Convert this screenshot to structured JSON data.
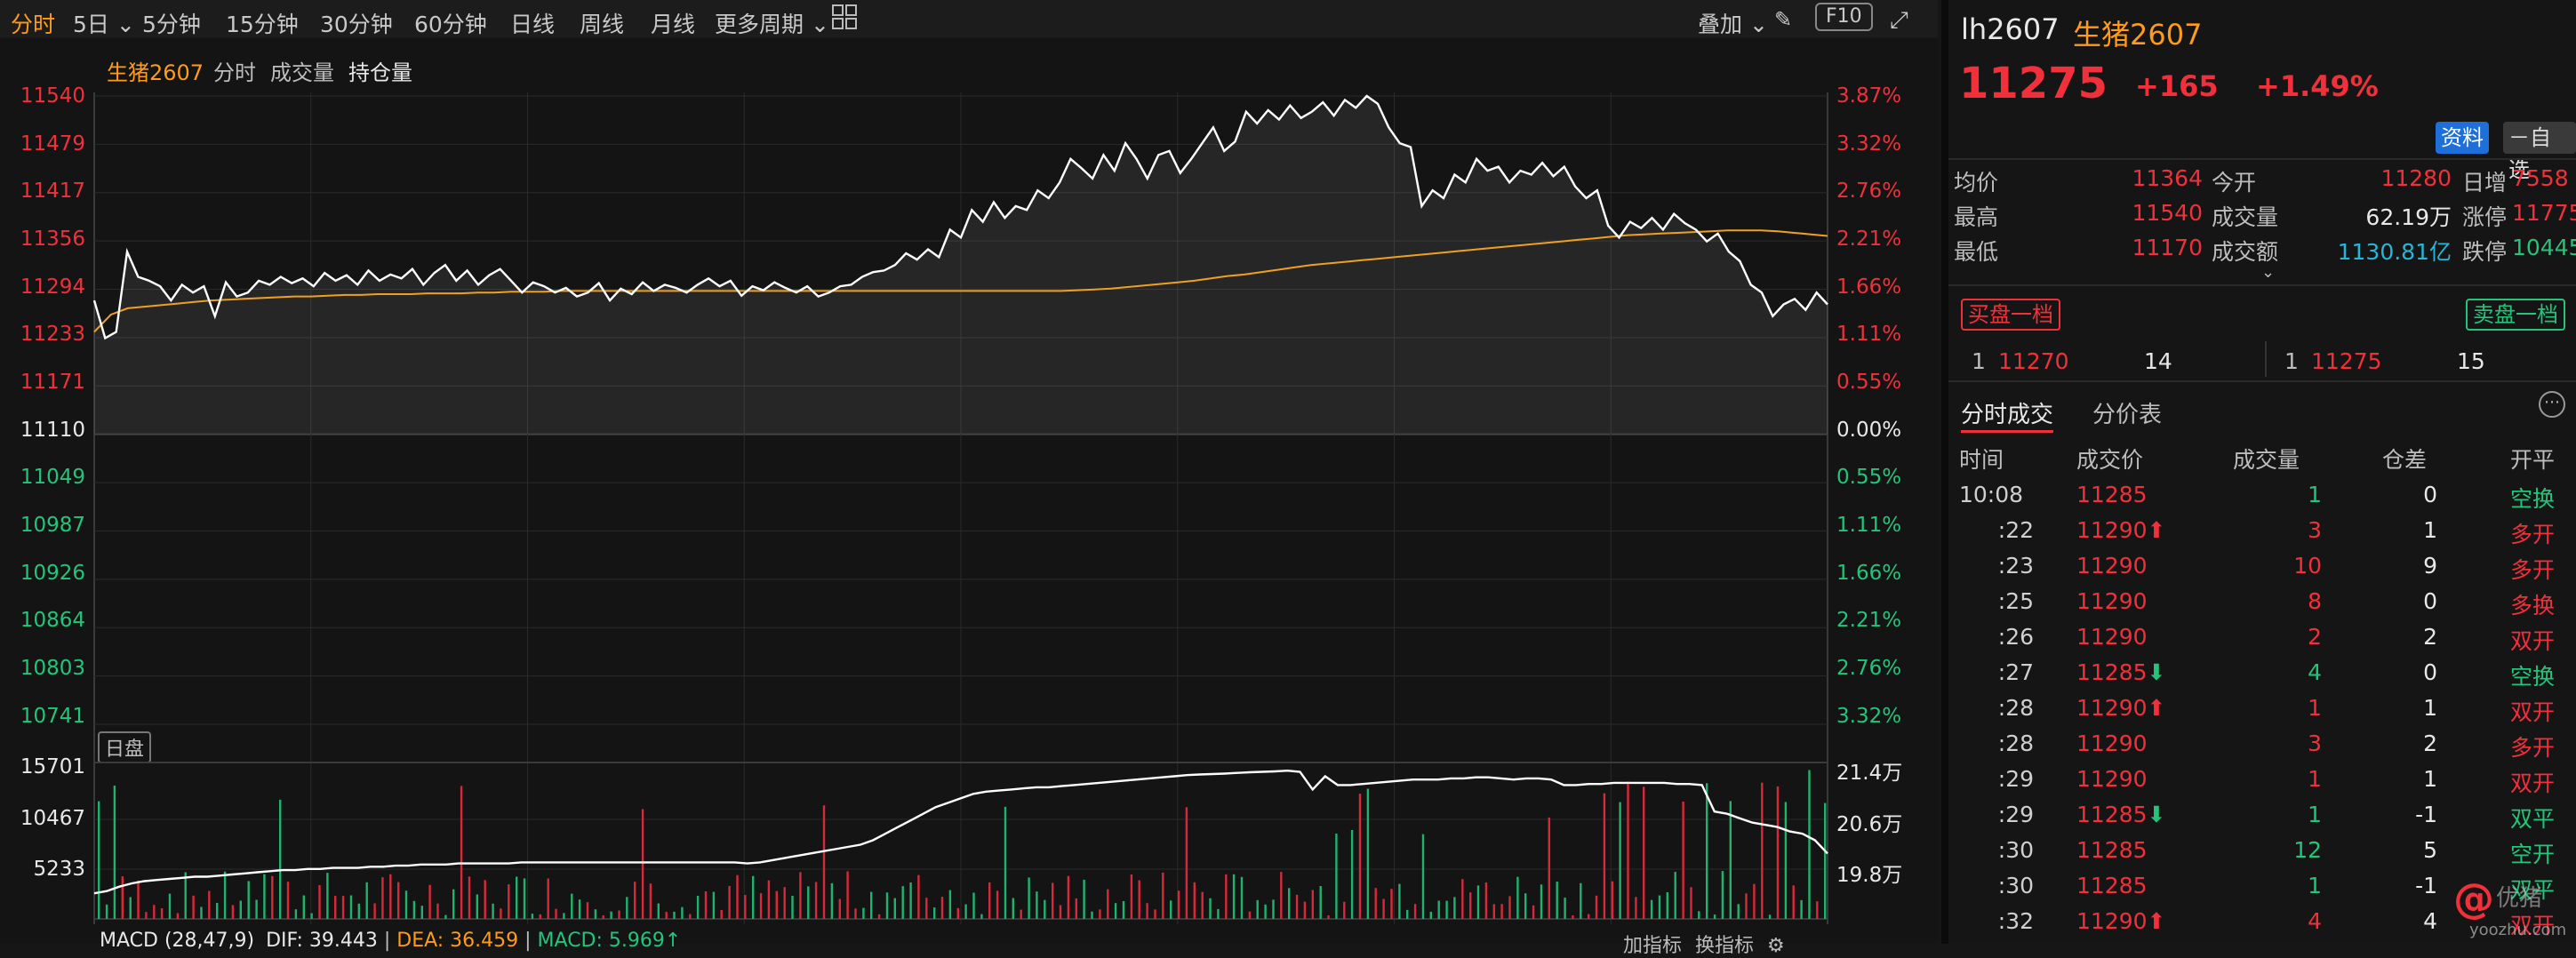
{
  "toolbar": {
    "periods": [
      "分时",
      "5日",
      "5分钟",
      "15分钟",
      "30分钟",
      "60分钟",
      "日线",
      "周线",
      "月线",
      "更多周期"
    ],
    "overlay": "叠加",
    "f10": "F10"
  },
  "chart_header": {
    "symbol": "生猪2607",
    "tabs": [
      "分时",
      "成交量",
      "持仓量"
    ]
  },
  "price_axis": {
    "left": [
      "11540",
      "11479",
      "11417",
      "11356",
      "11294",
      "11233",
      "11171",
      "11110",
      "11049",
      "10987",
      "10926",
      "10864",
      "10803",
      "10741"
    ],
    "right": [
      "3.87%",
      "3.32%",
      "2.76%",
      "2.21%",
      "1.66%",
      "1.11%",
      "0.55%",
      "0.00%",
      "0.55%",
      "1.11%",
      "1.66%",
      "2.21%",
      "2.76%",
      "3.32%"
    ]
  },
  "session_label": "日盘",
  "volume_axis": {
    "left": [
      "15701",
      "10467",
      "5233"
    ],
    "right": [
      "21.4万",
      "20.6万",
      "19.8万"
    ]
  },
  "macd_label": {
    "name": "MACD (28,47,9)",
    "dif": "DIF: 39.443",
    "dea": "DEA: 36.459",
    "macd": "MACD: 5.969↑"
  },
  "bottom_right": {
    "add": "加指标",
    "swap": "换指标"
  },
  "chart_data": {
    "type": "line",
    "price_range": [
      10741,
      11540
    ],
    "prev_close": 11110,
    "price": [
      11280,
      11232,
      11240,
      11342,
      11310,
      11305,
      11298,
      11280,
      11300,
      11290,
      11298,
      11260,
      11303,
      11285,
      11290,
      11305,
      11300,
      11310,
      11302,
      11308,
      11298,
      11315,
      11305,
      11312,
      11300,
      11318,
      11305,
      11313,
      11308,
      11320,
      11300,
      11315,
      11325,
      11305,
      11318,
      11300,
      11312,
      11320,
      11305,
      11290,
      11303,
      11298,
      11290,
      11296,
      11285,
      11290,
      11302,
      11280,
      11295,
      11288,
      11303,
      11292,
      11300,
      11296,
      11290,
      11300,
      11308,
      11298,
      11305,
      11286,
      11298,
      11293,
      11303,
      11296,
      11290,
      11298,
      11285,
      11290,
      11298,
      11300,
      11310,
      11316,
      11318,
      11325,
      11340,
      11332,
      11345,
      11335,
      11370,
      11360,
      11395,
      11380,
      11405,
      11385,
      11400,
      11395,
      11420,
      11410,
      11430,
      11460,
      11448,
      11435,
      11465,
      11445,
      11480,
      11460,
      11435,
      11465,
      11470,
      11442,
      11460,
      11480,
      11500,
      11470,
      11482,
      11520,
      11505,
      11522,
      11510,
      11528,
      11512,
      11520,
      11532,
      11515,
      11535,
      11525,
      11540,
      11530,
      11500,
      11480,
      11475,
      11400,
      11420,
      11410,
      11440,
      11430,
      11460,
      11445,
      11450,
      11430,
      11445,
      11440,
      11455,
      11438,
      11450,
      11425,
      11410,
      11420,
      11375,
      11360,
      11380,
      11372,
      11385,
      11370,
      11390,
      11378,
      11370,
      11355,
      11365,
      11342,
      11330,
      11300,
      11290,
      11260,
      11275,
      11282,
      11268,
      11290,
      11275
    ],
    "avg": [
      11240,
      11262,
      11270,
      11272,
      11274,
      11276,
      11278,
      11280,
      11281,
      11282,
      11283,
      11284,
      11285,
      11285,
      11286,
      11287,
      11287,
      11288,
      11288,
      11288,
      11289,
      11289,
      11289,
      11290,
      11290,
      11291,
      11291,
      11291,
      11292,
      11292,
      11292,
      11292,
      11292,
      11292,
      11292,
      11292,
      11292,
      11292,
      11292,
      11292,
      11292,
      11292,
      11292,
      11292,
      11292,
      11292,
      11292,
      11292,
      11292,
      11292,
      11292,
      11292,
      11292,
      11292,
      11292,
      11292,
      11292,
      11292,
      11292,
      11293,
      11294,
      11295,
      11297,
      11299,
      11301,
      11303,
      11305,
      11308,
      11311,
      11313,
      11316,
      11319,
      11322,
      11325,
      11327,
      11329,
      11331,
      11333,
      11335,
      11337,
      11339,
      11341,
      11343,
      11345,
      11347,
      11349,
      11351,
      11353,
      11355,
      11357,
      11359,
      11361,
      11363,
      11364,
      11365,
      11366,
      11367,
      11368,
      11369,
      11369,
      11369,
      11368,
      11366,
      11364,
      11362
    ],
    "oi": [
      1.0,
      1.1,
      1.3,
      1.45,
      1.55,
      1.6,
      1.65,
      1.7,
      1.75,
      1.75,
      1.8,
      1.85,
      1.9,
      1.95,
      2.0,
      2.05,
      2.05,
      2.1,
      2.1,
      2.15,
      2.15,
      2.15,
      2.2,
      2.2,
      2.25,
      2.25,
      2.3,
      2.3,
      2.3,
      2.35,
      2.35,
      2.35,
      2.35,
      2.35,
      2.4,
      2.4,
      2.4,
      2.4,
      2.4,
      2.4,
      2.4,
      2.4,
      2.4,
      2.4,
      2.4,
      2.4,
      2.4,
      2.4,
      2.4,
      2.4,
      2.4,
      2.4,
      2.35,
      2.4,
      2.5,
      2.6,
      2.7,
      2.8,
      2.9,
      3.0,
      3.1,
      3.2,
      3.4,
      3.7,
      4.0,
      4.3,
      4.6,
      4.9,
      5.1,
      5.3,
      5.5,
      5.6,
      5.65,
      5.7,
      5.75,
      5.8,
      5.8,
      5.85,
      5.9,
      5.95,
      6.0,
      6.05,
      6.1,
      6.15,
      6.2,
      6.25,
      6.3,
      6.35,
      6.38,
      6.4,
      6.42,
      6.45,
      6.48,
      6.5,
      6.52,
      6.55,
      6.5,
      5.7,
      6.3,
      5.9,
      5.9,
      5.95,
      6.0,
      6.05,
      6.1,
      6.15,
      6.15,
      6.15,
      6.2,
      6.2,
      6.25,
      6.25,
      6.2,
      6.15,
      6.2,
      6.2,
      6.15,
      5.9,
      5.9,
      5.95,
      5.95,
      6.0,
      6.0,
      6.0,
      6.0,
      6.0,
      5.95,
      5.95,
      5.9,
      4.7,
      4.6,
      4.4,
      4.2,
      4.1,
      4.0,
      3.8,
      3.7,
      3.4,
      2.8
    ]
  },
  "quote": {
    "code": "lh2607",
    "name": "生猪2607",
    "last": "11275",
    "change": "+165",
    "pct": "+1.49%",
    "btn_info": "资料",
    "btn_watch": "－自选",
    "stats": [
      [
        "均价",
        "11364",
        "今开",
        "11280",
        "日增",
        "7558"
      ],
      [
        "最高",
        "11540",
        "成交量",
        "62.19万",
        "涨停",
        "11775"
      ],
      [
        "最低",
        "11170",
        "成交额",
        "1130.81亿",
        "跌停",
        "10445"
      ]
    ],
    "bid_btn": "买盘一档",
    "ask_btn": "卖盘一档",
    "bid": {
      "level": "1",
      "price": "11270",
      "qty": "14"
    },
    "ask": {
      "level": "1",
      "price": "11275",
      "qty": "15"
    }
  },
  "trades": {
    "tabs": [
      "分时成交",
      "分价表"
    ],
    "headers": [
      "时间",
      "成交价",
      "成交量",
      "仓差",
      "开平"
    ],
    "rows": [
      [
        "10:08",
        "11285",
        "1",
        "0",
        "空换",
        "",
        ""
      ],
      [
        ":22",
        "11290",
        "3",
        "1",
        "多开",
        "up",
        ""
      ],
      [
        ":23",
        "11290",
        "10",
        "9",
        "多开",
        "",
        ""
      ],
      [
        ":25",
        "11290",
        "8",
        "0",
        "多换",
        "",
        ""
      ],
      [
        ":26",
        "11290",
        "2",
        "2",
        "双开",
        "",
        ""
      ],
      [
        ":27",
        "11285",
        "4",
        "0",
        "空换",
        "down",
        ""
      ],
      [
        ":28",
        "11290",
        "1",
        "1",
        "双开",
        "up",
        ""
      ],
      [
        ":28",
        "11290",
        "3",
        "2",
        "多开",
        "",
        ""
      ],
      [
        ":29",
        "11290",
        "1",
        "1",
        "双开",
        "",
        ""
      ],
      [
        ":29",
        "11285",
        "1",
        "-1",
        "双平",
        "down",
        ""
      ],
      [
        ":30",
        "11285",
        "12",
        "5",
        "空开",
        "",
        ""
      ],
      [
        ":30",
        "11285",
        "1",
        "-1",
        "双平",
        "",
        ""
      ],
      [
        ":32",
        "11290",
        "4",
        "4",
        "双开",
        "up",
        ""
      ]
    ]
  },
  "watermark": "yoozhu.com"
}
